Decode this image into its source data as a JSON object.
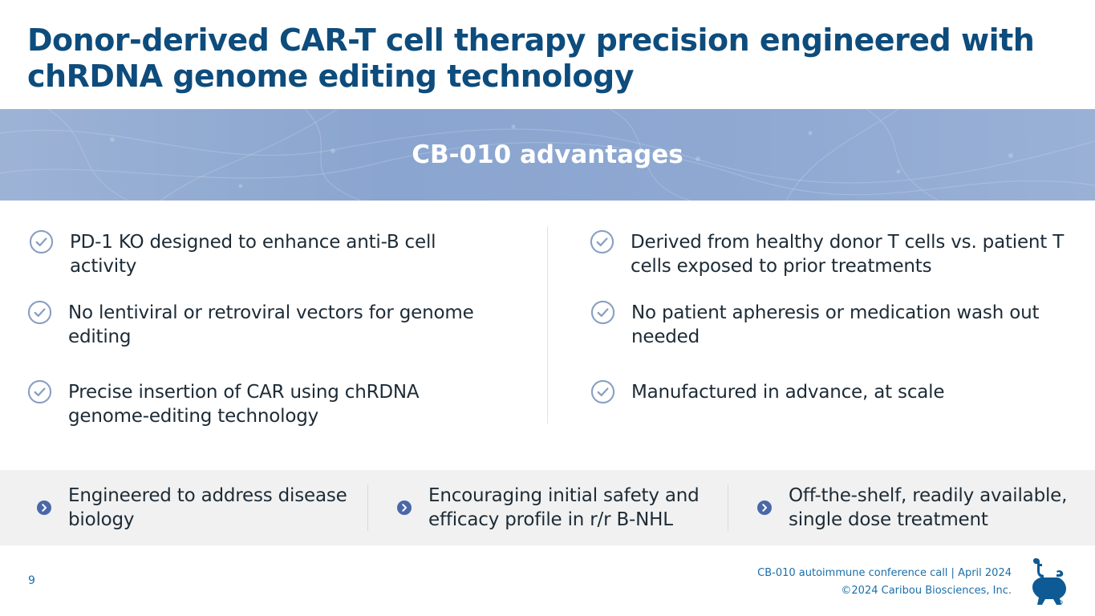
{
  "title": "Donor-derived CAR-T cell therapy precision engineered with chRDNA genome editing technology",
  "banner": {
    "title": "CB-010 advantages"
  },
  "advantages": {
    "left": [
      "PD-1 KO designed to enhance anti-B cell activity",
      "No lentiviral or retroviral vectors for genome editing",
      "Precise insertion of CAR using chRDNA genome-editing technology"
    ],
    "right": [
      "Derived from healthy donor T cells vs. patient T cells exposed to prior treatments",
      "No patient apheresis or medication wash out needed",
      "Manufactured in advance, at scale"
    ]
  },
  "pillars": [
    "Engineered to address disease biology",
    "Encouraging initial safety and efficacy profile in r/r B-NHL",
    "Off-the-shelf, readily available, single dose treatment"
  ],
  "footer": {
    "page_number": "9",
    "event": "CB-010 autoimmune conference call | April 2024",
    "copyright": "©2024 Caribou Biosciences, Inc."
  },
  "colors": {
    "title": "#0d4c7c",
    "banner": "#8ea8d2",
    "check": "#8aa0c2",
    "chevron": "#4a67a8",
    "footer_text": "#1b6fa8",
    "logo": "#0d5a94"
  },
  "icons": {
    "check": "check-circle-icon",
    "chevron": "chevron-right-circle-icon",
    "logo": "caribou-logo-icon"
  }
}
